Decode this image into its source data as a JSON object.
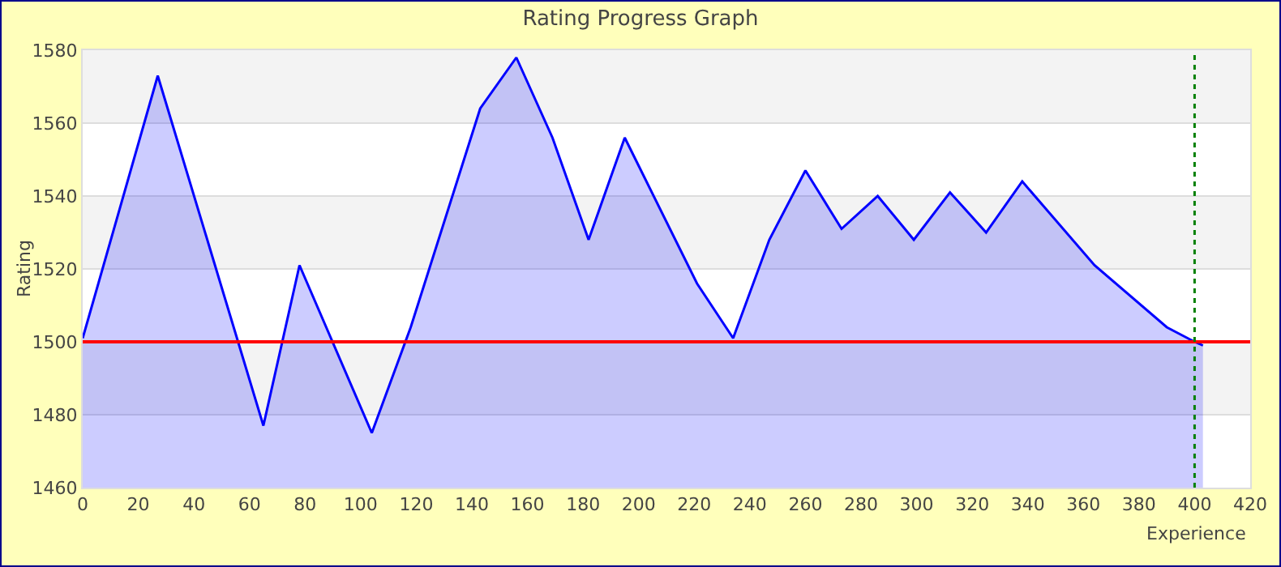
{
  "chart_data": {
    "type": "area",
    "title": "Rating Progress Graph",
    "xlabel": "Experience",
    "ylabel": "Rating",
    "x": [
      0,
      27,
      65,
      78,
      104,
      118,
      143,
      156,
      169,
      182,
      195,
      221,
      234,
      247,
      260,
      273,
      286,
      299,
      312,
      325,
      338,
      364,
      390,
      400,
      403
    ],
    "series": [
      {
        "color": "#0000ff",
        "values": [
          1501,
          1573,
          1477,
          1521,
          1475,
          1504,
          1564,
          1578,
          1556,
          1528,
          1556,
          1516,
          1501,
          1528,
          1547,
          1531,
          1540,
          1528,
          1541,
          1530,
          1544,
          1521,
          1504,
          1500,
          1499
        ]
      }
    ],
    "xlim": [
      0,
      420
    ],
    "xticks": [
      0,
      20,
      40,
      60,
      80,
      100,
      120,
      140,
      160,
      180,
      200,
      220,
      240,
      260,
      280,
      300,
      320,
      340,
      360,
      380,
      400,
      420
    ],
    "ylim": [
      1460,
      1580
    ],
    "yticks": [
      1460,
      1480,
      1500,
      1520,
      1540,
      1560,
      1580
    ],
    "grid": "y",
    "marker": "none",
    "line_style": "solid",
    "ref_lines": [
      {
        "axis": "y",
        "value": 1500,
        "color": "#ff0000",
        "line_style": "solid"
      },
      {
        "axis": "x",
        "value": 400,
        "color": "#008000",
        "line_style": "dotted"
      }
    ]
  }
}
